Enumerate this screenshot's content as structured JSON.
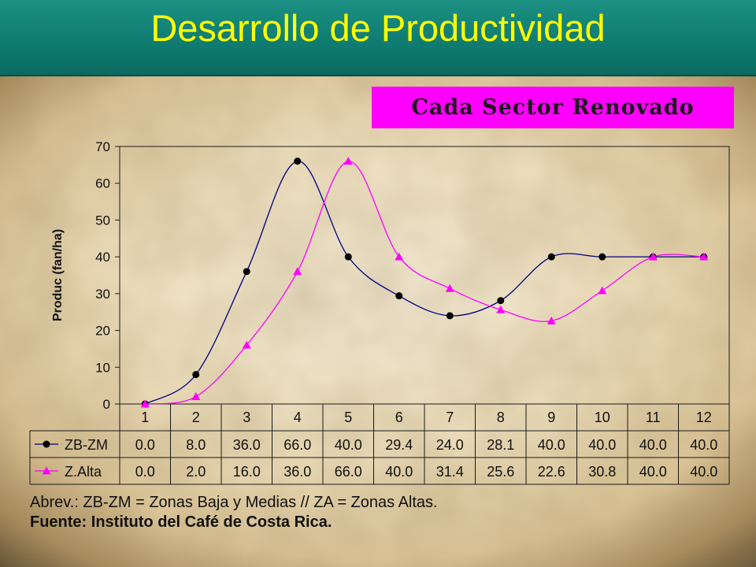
{
  "title": "Desarrollo de Productividad",
  "subtitle": "Cada Sector Renovado",
  "chart_data": {
    "type": "line",
    "x": [
      "1",
      "2",
      "3",
      "4",
      "5",
      "6",
      "7",
      "8",
      "9",
      "10",
      "11",
      "12"
    ],
    "ylabel": "Produc (fan/ha)",
    "ylim": [
      0,
      70
    ],
    "yticks": [
      "0",
      "10",
      "20",
      "30",
      "40",
      "50",
      "60",
      "70"
    ],
    "grid": false,
    "smooth": true,
    "data_table": true,
    "series": [
      {
        "name": "ZB-ZM",
        "color": "#000080",
        "marker": "circle",
        "marker_color": "#000000",
        "values": [
          0.0,
          8.0,
          36.0,
          66.0,
          40.0,
          29.4,
          24.0,
          28.1,
          40.0,
          40.0,
          40.0,
          40.0
        ],
        "table_values": [
          "0.0",
          "8.0",
          "36.0",
          "66.0",
          "40.0",
          "29.4",
          "24.0",
          "28.1",
          "40.0",
          "40.0",
          "40.0",
          "40.0"
        ]
      },
      {
        "name": "Z.Alta",
        "color": "#ff00ff",
        "marker": "triangle",
        "marker_color": "#ff00ff",
        "values": [
          0.0,
          2.0,
          16.0,
          36.0,
          66.0,
          40.0,
          31.4,
          25.6,
          22.6,
          30.8,
          40.0,
          40.0
        ],
        "table_values": [
          "0.0",
          "2.0",
          "16.0",
          "36.0",
          "66.0",
          "40.0",
          "31.4",
          "25.6",
          "22.6",
          "30.8",
          "40.0",
          "40.0"
        ]
      }
    ]
  },
  "notes": {
    "abbrev": "Abrev.: ZB-ZM = Zonas Baja y Medias // ZA = Zonas Altas.",
    "source": "Fuente: Instituto del Café de Costa Rica."
  }
}
